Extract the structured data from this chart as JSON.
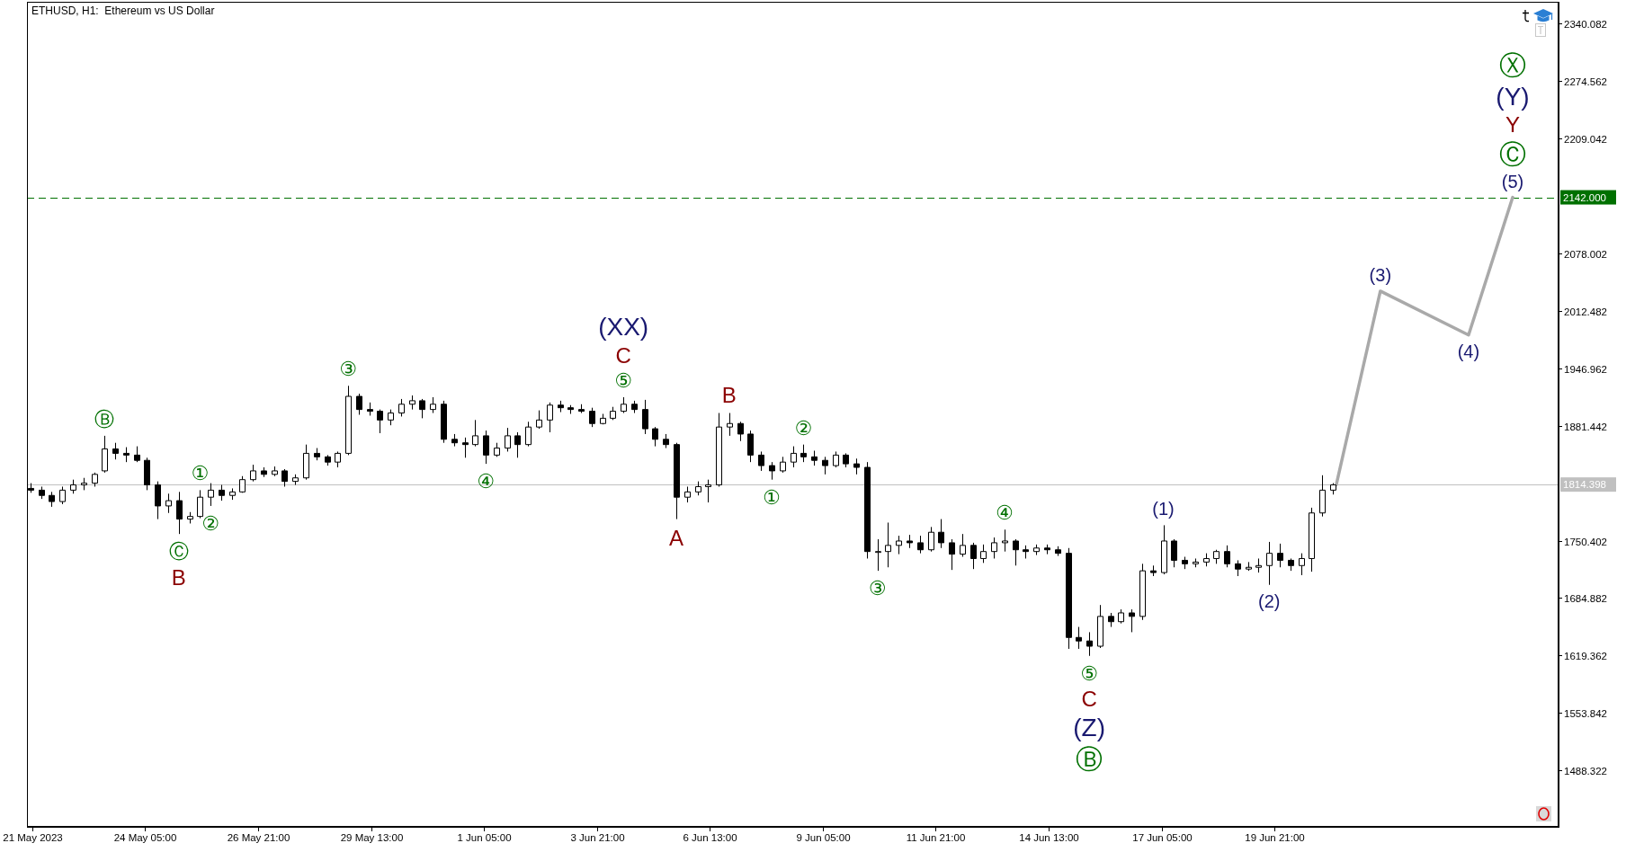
{
  "chart_data": {
    "type": "candlestick",
    "title": "ETHUSD, H1:  Ethereum vs US Dollar",
    "xlim": [
      "2023-05-21T10:00",
      "2023-06-26T14:00"
    ],
    "xticks": [
      {
        "value": "2023-05-21T13:00",
        "label": "21 May 2023"
      },
      {
        "value": "2023-05-24T05:00",
        "label": "24 May 05:00"
      },
      {
        "value": "2023-05-26T21:00",
        "label": "26 May 21:00"
      },
      {
        "value": "2023-05-29T13:00",
        "label": "29 May 13:00"
      },
      {
        "value": "2023-06-01T05:00",
        "label": "1 Jun 05:00"
      },
      {
        "value": "2023-06-03T21:00",
        "label": "3 Jun 21:00"
      },
      {
        "value": "2023-06-06T13:00",
        "label": "6 Jun 13:00"
      },
      {
        "value": "2023-06-09T05:00",
        "label": "9 Jun 05:00"
      },
      {
        "value": "2023-06-11T21:00",
        "label": "11 Jun 21:00"
      },
      {
        "value": "2023-06-14T13:00",
        "label": "14 Jun 13:00"
      },
      {
        "value": "2023-06-17T05:00",
        "label": "17 Jun 05:00"
      },
      {
        "value": "2023-06-19T21:00",
        "label": "19 Jun 21:00"
      }
    ],
    "ylim": [
      1424,
      2365
    ],
    "yticks": [
      2340.082,
      2274.562,
      2209.042,
      2078.002,
      2012.482,
      1946.962,
      1881.442,
      1750.402,
      1684.882,
      1619.362,
      1553.842,
      1488.322
    ],
    "series": [
      {
        "type": "candlestick",
        "color": "#000000",
        "x": [
          "2023-05-21T12:00",
          "2023-05-21T18:00",
          "2023-05-22T00:00",
          "2023-05-22T06:00",
          "2023-05-22T12:00",
          "2023-05-22T18:00",
          "2023-05-23T00:00",
          "2023-05-23T06:00",
          "2023-05-23T12:00",
          "2023-05-23T18:00",
          "2023-05-24T00:00",
          "2023-05-24T06:00",
          "2023-05-24T12:00",
          "2023-05-24T18:00",
          "2023-05-25T00:00",
          "2023-05-25T06:00",
          "2023-05-25T12:00",
          "2023-05-25T18:00",
          "2023-05-26T00:00",
          "2023-05-26T06:00",
          "2023-05-26T12:00",
          "2023-05-26T18:00",
          "2023-05-27T00:00",
          "2023-05-27T06:00",
          "2023-05-27T12:00",
          "2023-05-27T18:00",
          "2023-05-28T00:00",
          "2023-05-28T06:00",
          "2023-05-28T12:00",
          "2023-05-28T18:00",
          "2023-05-29T00:00",
          "2023-05-29T06:00",
          "2023-05-29T12:00",
          "2023-05-29T18:00",
          "2023-05-30T00:00",
          "2023-05-30T06:00",
          "2023-05-30T12:00",
          "2023-05-30T18:00",
          "2023-05-31T00:00",
          "2023-05-31T06:00",
          "2023-05-31T12:00",
          "2023-05-31T18:00",
          "2023-06-01T00:00",
          "2023-06-01T06:00",
          "2023-06-01T12:00",
          "2023-06-01T18:00",
          "2023-06-02T00:00",
          "2023-06-02T06:00",
          "2023-06-02T12:00",
          "2023-06-02T18:00",
          "2023-06-03T00:00",
          "2023-06-03T06:00",
          "2023-06-03T12:00",
          "2023-06-03T18:00",
          "2023-06-04T00:00",
          "2023-06-04T06:00",
          "2023-06-04T12:00",
          "2023-06-04T18:00",
          "2023-06-05T00:00",
          "2023-06-05T06:00",
          "2023-06-05T12:00",
          "2023-06-05T18:00",
          "2023-06-06T00:00",
          "2023-06-06T06:00",
          "2023-06-06T12:00",
          "2023-06-06T18:00",
          "2023-06-07T00:00",
          "2023-06-07T06:00",
          "2023-06-07T12:00",
          "2023-06-07T18:00",
          "2023-06-08T00:00",
          "2023-06-08T06:00",
          "2023-06-08T12:00",
          "2023-06-08T18:00",
          "2023-06-09T00:00",
          "2023-06-09T06:00",
          "2023-06-09T12:00",
          "2023-06-09T18:00",
          "2023-06-10T00:00",
          "2023-06-10T06:00",
          "2023-06-10T12:00",
          "2023-06-10T18:00",
          "2023-06-11T00:00",
          "2023-06-11T06:00",
          "2023-06-11T12:00",
          "2023-06-11T18:00",
          "2023-06-12T00:00",
          "2023-06-12T06:00",
          "2023-06-12T12:00",
          "2023-06-12T18:00",
          "2023-06-13T00:00",
          "2023-06-13T06:00",
          "2023-06-13T12:00",
          "2023-06-13T18:00",
          "2023-06-14T00:00",
          "2023-06-14T06:00",
          "2023-06-14T12:00",
          "2023-06-14T18:00",
          "2023-06-15T00:00",
          "2023-06-15T06:00",
          "2023-06-15T12:00",
          "2023-06-15T18:00",
          "2023-06-16T00:00",
          "2023-06-16T06:00",
          "2023-06-16T12:00",
          "2023-06-16T18:00",
          "2023-06-17T00:00",
          "2023-06-17T06:00",
          "2023-06-17T12:00",
          "2023-06-17T18:00",
          "2023-06-18T00:00",
          "2023-06-18T06:00",
          "2023-06-18T12:00",
          "2023-06-18T18:00",
          "2023-06-19T00:00",
          "2023-06-19T06:00",
          "2023-06-19T12:00",
          "2023-06-19T18:00",
          "2023-06-20T00:00",
          "2023-06-20T06:00",
          "2023-06-20T12:00",
          "2023-06-20T18:00",
          "2023-06-21T00:00",
          "2023-06-21T06:00"
        ],
        "ohlc": [
          [
            1810,
            1816,
            1805,
            1808
          ],
          [
            1808,
            1812,
            1798,
            1802
          ],
          [
            1802,
            1806,
            1789,
            1795
          ],
          [
            1795,
            1812,
            1792,
            1808
          ],
          [
            1808,
            1820,
            1804,
            1814
          ],
          [
            1814,
            1822,
            1808,
            1816
          ],
          [
            1816,
            1828,
            1812,
            1826
          ],
          [
            1830,
            1870,
            1828,
            1855
          ],
          [
            1855,
            1862,
            1843,
            1850
          ],
          [
            1850,
            1857,
            1840,
            1848
          ],
          [
            1848,
            1858,
            1840,
            1842
          ],
          [
            1842,
            1845,
            1808,
            1814
          ],
          [
            1814,
            1818,
            1775,
            1790
          ],
          [
            1790,
            1804,
            1782,
            1796
          ],
          [
            1796,
            1806,
            1758,
            1775
          ],
          [
            1775,
            1783,
            1770,
            1778
          ],
          [
            1778,
            1808,
            1776,
            1800
          ],
          [
            1800,
            1816,
            1790,
            1808
          ],
          [
            1808,
            1814,
            1796,
            1802
          ],
          [
            1802,
            1810,
            1797,
            1806
          ],
          [
            1806,
            1824,
            1805,
            1820
          ],
          [
            1820,
            1837,
            1818,
            1830
          ],
          [
            1830,
            1834,
            1823,
            1826
          ],
          [
            1826,
            1835,
            1824,
            1830
          ],
          [
            1830,
            1832,
            1812,
            1818
          ],
          [
            1818,
            1826,
            1814,
            1822
          ],
          [
            1822,
            1860,
            1820,
            1850
          ],
          [
            1850,
            1856,
            1842,
            1846
          ],
          [
            1846,
            1848,
            1836,
            1840
          ],
          [
            1840,
            1852,
            1834,
            1850
          ],
          [
            1850,
            1927,
            1848,
            1915
          ],
          [
            1915,
            1918,
            1894,
            1900
          ],
          [
            1900,
            1908,
            1893,
            1898
          ],
          [
            1898,
            1900,
            1873,
            1888
          ],
          [
            1888,
            1900,
            1882,
            1896
          ],
          [
            1896,
            1912,
            1892,
            1906
          ],
          [
            1906,
            1916,
            1900,
            1910
          ],
          [
            1910,
            1912,
            1890,
            1900
          ],
          [
            1900,
            1914,
            1896,
            1906
          ],
          [
            1906,
            1910,
            1862,
            1866
          ],
          [
            1866,
            1872,
            1858,
            1862
          ],
          [
            1862,
            1868,
            1845,
            1860
          ],
          [
            1860,
            1888,
            1858,
            1870
          ],
          [
            1870,
            1876,
            1838,
            1848
          ],
          [
            1848,
            1862,
            1846,
            1856
          ],
          [
            1856,
            1879,
            1852,
            1870
          ],
          [
            1870,
            1874,
            1845,
            1860
          ],
          [
            1860,
            1886,
            1858,
            1880
          ],
          [
            1880,
            1899,
            1878,
            1888
          ],
          [
            1888,
            1908,
            1874,
            1905
          ],
          [
            1905,
            1910,
            1897,
            1902
          ],
          [
            1902,
            1905,
            1895,
            1900
          ],
          [
            1900,
            1906,
            1896,
            1898
          ],
          [
            1898,
            1902,
            1880,
            1884
          ],
          [
            1884,
            1895,
            1883,
            1890
          ],
          [
            1890,
            1903,
            1888,
            1898
          ],
          [
            1898,
            1914,
            1896,
            1906
          ],
          [
            1906,
            1910,
            1896,
            1900
          ],
          [
            1900,
            1911,
            1872,
            1878
          ],
          [
            1878,
            1880,
            1858,
            1866
          ],
          [
            1866,
            1872,
            1856,
            1860
          ],
          [
            1860,
            1862,
            1775,
            1800
          ],
          [
            1800,
            1812,
            1794,
            1806
          ],
          [
            1806,
            1818,
            1802,
            1812
          ],
          [
            1812,
            1820,
            1794,
            1814
          ],
          [
            1814,
            1896,
            1812,
            1880
          ],
          [
            1880,
            1896,
            1870,
            1884
          ],
          [
            1884,
            1886,
            1864,
            1872
          ],
          [
            1872,
            1876,
            1840,
            1848
          ],
          [
            1848,
            1852,
            1830,
            1836
          ],
          [
            1836,
            1840,
            1820,
            1830
          ],
          [
            1830,
            1846,
            1828,
            1840
          ],
          [
            1840,
            1858,
            1834,
            1850
          ],
          [
            1850,
            1860,
            1840,
            1846
          ],
          [
            1846,
            1853,
            1836,
            1842
          ],
          [
            1842,
            1846,
            1826,
            1836
          ],
          [
            1836,
            1852,
            1834,
            1848
          ],
          [
            1848,
            1850,
            1834,
            1838
          ],
          [
            1838,
            1844,
            1826,
            1834
          ],
          [
            1834,
            1840,
            1730,
            1738
          ],
          [
            1738,
            1752,
            1716,
            1738
          ],
          [
            1738,
            1771,
            1720,
            1745
          ],
          [
            1745,
            1756,
            1735,
            1750
          ],
          [
            1750,
            1757,
            1742,
            1748
          ],
          [
            1748,
            1756,
            1736,
            1740
          ],
          [
            1740,
            1766,
            1738,
            1760
          ],
          [
            1760,
            1775,
            1742,
            1748
          ],
          [
            1748,
            1752,
            1717,
            1735
          ],
          [
            1735,
            1758,
            1732,
            1745
          ],
          [
            1745,
            1748,
            1718,
            1730
          ],
          [
            1730,
            1746,
            1725,
            1738
          ],
          [
            1738,
            1754,
            1730,
            1748
          ],
          [
            1748,
            1763,
            1738,
            1750
          ],
          [
            1750,
            1752,
            1722,
            1740
          ],
          [
            1740,
            1745,
            1730,
            1738
          ],
          [
            1738,
            1746,
            1734,
            1742
          ],
          [
            1742,
            1746,
            1735,
            1740
          ],
          [
            1740,
            1744,
            1733,
            1736
          ],
          [
            1736,
            1742,
            1627,
            1640
          ],
          [
            1640,
            1652,
            1627,
            1636
          ],
          [
            1636,
            1646,
            1619,
            1630
          ],
          [
            1630,
            1677,
            1628,
            1664
          ],
          [
            1664,
            1668,
            1652,
            1658
          ],
          [
            1658,
            1672,
            1656,
            1668
          ],
          [
            1668,
            1672,
            1646,
            1664
          ],
          [
            1664,
            1724,
            1660,
            1716
          ],
          [
            1716,
            1722,
            1710,
            1714
          ],
          [
            1714,
            1768,
            1712,
            1750
          ],
          [
            1750,
            1752,
            1720,
            1728
          ],
          [
            1728,
            1732,
            1718,
            1724
          ],
          [
            1724,
            1730,
            1720,
            1726
          ],
          [
            1726,
            1736,
            1721,
            1730
          ],
          [
            1730,
            1740,
            1724,
            1738
          ],
          [
            1738,
            1745,
            1720,
            1724
          ],
          [
            1724,
            1728,
            1710,
            1718
          ],
          [
            1718,
            1726,
            1716,
            1720
          ],
          [
            1720,
            1730,
            1714,
            1722
          ],
          [
            1722,
            1749,
            1700,
            1736
          ],
          [
            1736,
            1747,
            1720,
            1728
          ],
          [
            1728,
            1730,
            1716,
            1722
          ],
          [
            1722,
            1736,
            1711,
            1730
          ],
          [
            1730,
            1788,
            1715,
            1782
          ],
          [
            1782,
            1825,
            1778,
            1808
          ],
          [
            1808,
            1816,
            1803,
            1814
          ]
        ]
      },
      {
        "type": "line",
        "color": "#a9a9a9",
        "x": [
          "2023-06-21T08:00",
          "2023-06-22T09:00",
          "2023-06-24T11:00",
          "2023-06-25T12:00"
        ],
        "values": [
          1814,
          2035,
          1985,
          2142
        ]
      }
    ],
    "ref_lines": [
      {
        "axis": "y",
        "value": 2142,
        "label": "2142.000",
        "color": "#007000",
        "line_style": "dashed"
      },
      {
        "axis": "y",
        "value": 1814.398,
        "label": "1814.398",
        "color": "#c0c0c0"
      }
    ],
    "annotations": [
      {
        "text": "Ⓑ",
        "x": "2023-05-23T06:00",
        "y": 1870
      },
      {
        "text": "①",
        "x": "2023-05-25T12:00",
        "y": 1808
      },
      {
        "text": "②",
        "x": "2023-05-25T18:00",
        "y": 1790
      },
      {
        "text": "Ⓒ",
        "x": "2023-05-25T00:00",
        "y": 1758
      },
      {
        "text": "B",
        "x": "2023-05-25T00:00",
        "y": 1758
      },
      {
        "text": "③",
        "x": "2023-05-29T00:00",
        "y": 1927
      },
      {
        "text": "④",
        "x": "2023-06-01T06:00",
        "y": 1838
      },
      {
        "text": "⑤",
        "x": "2023-06-04T12:00",
        "y": 1914
      },
      {
        "text": "C",
        "x": "2023-06-04T12:00",
        "y": 1914
      },
      {
        "text": "(XX)",
        "x": "2023-06-04T12:00",
        "y": 1914
      },
      {
        "text": "A",
        "x": "2023-06-05T18:00",
        "y": 1775
      },
      {
        "text": "B",
        "x": "2023-06-07T00:00",
        "y": 1896
      },
      {
        "text": "①",
        "x": "2023-06-08T00:00",
        "y": 1820
      },
      {
        "text": "②",
        "x": "2023-06-08T18:00",
        "y": 1860
      },
      {
        "text": "③",
        "x": "2023-06-10T12:00",
        "y": 1716
      },
      {
        "text": "④",
        "x": "2023-06-13T12:00",
        "y": 1763
      },
      {
        "text": "⑤",
        "x": "2023-06-15T12:00",
        "y": 1619
      },
      {
        "text": "C",
        "x": "2023-06-15T12:00",
        "y": 1619
      },
      {
        "text": "(Z)",
        "x": "2023-06-15T12:00",
        "y": 1619
      },
      "Ⓑ",
      {
        "text": "(1)",
        "x": "2023-06-17T06:00",
        "y": 1768
      },
      {
        "text": "(2)",
        "x": "2023-06-19T18:00",
        "y": 1700
      },
      {
        "text": "(3)",
        "x": "2023-06-22T09:00",
        "y": 2035
      },
      {
        "text": "(4)",
        "x": "2023-06-24T11:00",
        "y": 1985
      },
      {
        "text": "(5)",
        "x": "2023-06-25T12:00",
        "y": 2142
      },
      {
        "text": "Ⓒ",
        "x": "2023-06-25T12:00",
        "y": 2142
      },
      {
        "text": "Y",
        "x": "2023-06-25T12:00",
        "y": 2142
      },
      "(Y)",
      "Ⓧ"
    ]
  }
}
